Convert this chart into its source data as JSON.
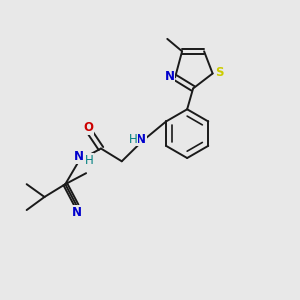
{
  "bg_color": "#e8e8e8",
  "bond_color": "#1a1a1a",
  "colors": {
    "N": "#0000cc",
    "O": "#cc0000",
    "S": "#cccc00",
    "H_text": "#008080"
  },
  "lw": 1.4,
  "fs": 8.5,
  "fs_small": 7.5
}
